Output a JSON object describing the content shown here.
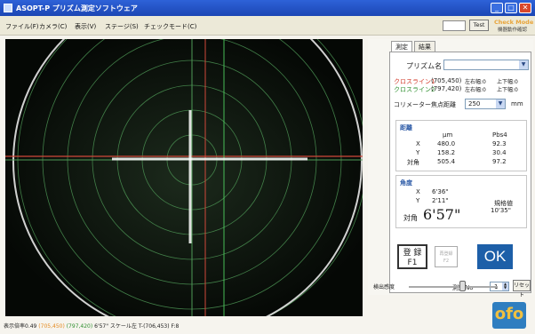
{
  "window": {
    "title": "ASOPT-P プリズム測定ソフトウェア",
    "controls": [
      "_",
      "□",
      "✕"
    ]
  },
  "menu": {
    "items": [
      "ファイル(F)",
      "カメラ(C)",
      "表示(V)",
      "ステージ(S)",
      "チェックモード(C)"
    ],
    "test_label": "Test",
    "check_mode": "Check Mode",
    "check_sub": "機器動作確認"
  },
  "panel": {
    "tabs": [
      "測定",
      "結果"
    ],
    "prism_name_label": "プリズム名",
    "prism_name_value": "",
    "cross1": {
      "label": "クロスライン1",
      "coords": "(705,450)",
      "lr": "左右幅:0",
      "ud": "上下幅:0"
    },
    "cross2": {
      "label": "クロスライン2",
      "coords": "(797,420)",
      "lr": "左右幅:0",
      "ud": "上下幅:0"
    },
    "collimator_label": "コリメーター焦点距離",
    "collimator_value": "250",
    "collimator_unit": "mm",
    "distance": {
      "title": "距離",
      "col_um": "μm",
      "col_pbs": "Pbs4",
      "rows": [
        {
          "label": "X",
          "um": "480.0",
          "pbs": "92.3"
        },
        {
          "label": "Y",
          "um": "158.2",
          "pbs": "30.4"
        },
        {
          "label": "対角",
          "um": "505.4",
          "pbs": "97.2"
        }
      ]
    },
    "angle": {
      "title": "角度",
      "x_label": "X",
      "x_value": "6'36\"",
      "y_label": "Y",
      "y_value": "2'11\"",
      "diag_label": "対角",
      "diag_value": "6'57\"",
      "tolerance_label": "規格値",
      "tolerance_value": "10'35\""
    },
    "register_label": "登 録",
    "register_key": "F1",
    "gray_btn_line1": "再登録",
    "gray_btn_line2": "F2",
    "ok_label": "OK",
    "measure_no_label": "測定No",
    "measure_no_value": "1",
    "reset_label": "リセット",
    "detect_label": "検出感度",
    "slider_level": 0.6
  },
  "logo_text": "ofo",
  "status": {
    "prefix": "表示倍率0.49",
    "c1": "(705,450)",
    "c2": "(797,420)",
    "rest": "6'57\" スケール左 T-(706,453) F:8"
  }
}
